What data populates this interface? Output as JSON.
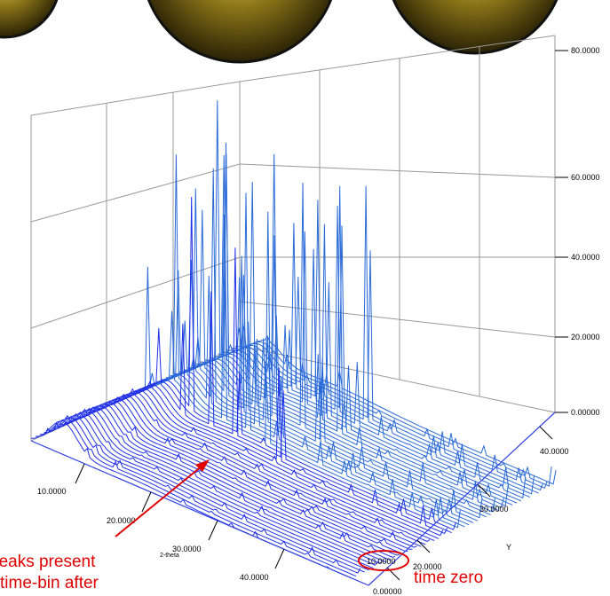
{
  "z_axis": {
    "ticks": [
      "80.0000",
      "60.0000",
      "40.0000",
      "20.0000",
      "0.00000"
    ]
  },
  "y_axis": {
    "label": "Y",
    "ticks": [
      "40.0000",
      "30.0000",
      "20.0000",
      "10.0000",
      "0.00000"
    ]
  },
  "x_axis": {
    "label": "2-theta",
    "ticks": [
      "10.0000",
      "20.0000",
      "30.0000",
      "40.0000"
    ]
  },
  "annotations": {
    "peaks": "peaks present",
    "time_bin": "time-bin after",
    "time_zero": "time zero"
  }
}
